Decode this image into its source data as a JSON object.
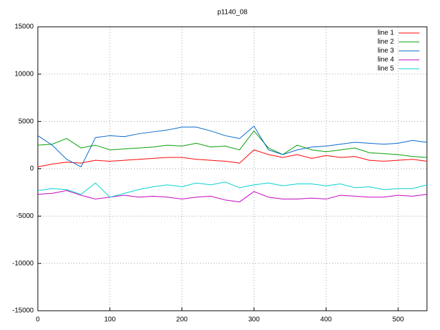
{
  "chart_data": {
    "type": "line",
    "title": "p1140_08",
    "x": [
      0,
      20,
      40,
      60,
      80,
      100,
      120,
      140,
      160,
      180,
      200,
      220,
      240,
      260,
      280,
      300,
      320,
      340,
      360,
      380,
      400,
      420,
      440,
      460,
      480,
      500,
      520,
      540
    ],
    "series": [
      {
        "name": "line 1",
        "color": "#ff0000",
        "values": [
          200,
          500,
          700,
          600,
          900,
          800,
          900,
          1000,
          1100,
          1200,
          1200,
          1000,
          900,
          800,
          600,
          2000,
          1500,
          1200,
          1500,
          1100,
          1400,
          1200,
          1300,
          900,
          800,
          900,
          1000,
          800
        ]
      },
      {
        "name": "line 2",
        "color": "#00a000",
        "values": [
          2500,
          2600,
          3200,
          2200,
          2500,
          2000,
          2100,
          2200,
          2300,
          2500,
          2400,
          2700,
          2300,
          2400,
          2000,
          4000,
          2200,
          1500,
          2500,
          2000,
          1800,
          2000,
          2200,
          1700,
          1600,
          1500,
          1300,
          1200
        ]
      },
      {
        "name": "line 3",
        "color": "#0066cc",
        "values": [
          3500,
          2500,
          1000,
          200,
          3300,
          3500,
          3400,
          3700,
          3900,
          4100,
          4400,
          4400,
          4000,
          3500,
          3200,
          4500,
          2000,
          1500,
          2000,
          2300,
          2400,
          2600,
          2800,
          2700,
          2600,
          2700,
          3000,
          2800
        ]
      },
      {
        "name": "line 4",
        "color": "#c000c0",
        "values": [
          -2700,
          -2600,
          -2300,
          -2800,
          -3200,
          -3000,
          -2800,
          -3000,
          -2900,
          -3000,
          -3200,
          -3000,
          -2900,
          -3300,
          -3500,
          -2400,
          -3000,
          -3200,
          -3200,
          -3100,
          -3200,
          -2800,
          -2900,
          -3000,
          -3000,
          -2800,
          -2900,
          -2700
        ]
      },
      {
        "name": "line 5",
        "color": "#00d0d0",
        "values": [
          -2300,
          -2100,
          -2200,
          -2700,
          -1500,
          -3000,
          -2600,
          -2200,
          -1900,
          -1700,
          -1900,
          -1500,
          -1700,
          -1400,
          -2000,
          -1700,
          -1500,
          -1800,
          -1600,
          -1600,
          -1800,
          -1600,
          -2000,
          -1900,
          -2200,
          -2100,
          -2100,
          -1700
        ]
      }
    ],
    "xlim": [
      0,
      540
    ],
    "xticks": [
      0,
      100,
      200,
      300,
      400,
      500
    ],
    "ylim": [
      -15000,
      15000
    ],
    "yticks": [
      -15000,
      -10000,
      -5000,
      0,
      5000,
      10000,
      15000
    ],
    "grid": true,
    "legend": "top-right"
  }
}
